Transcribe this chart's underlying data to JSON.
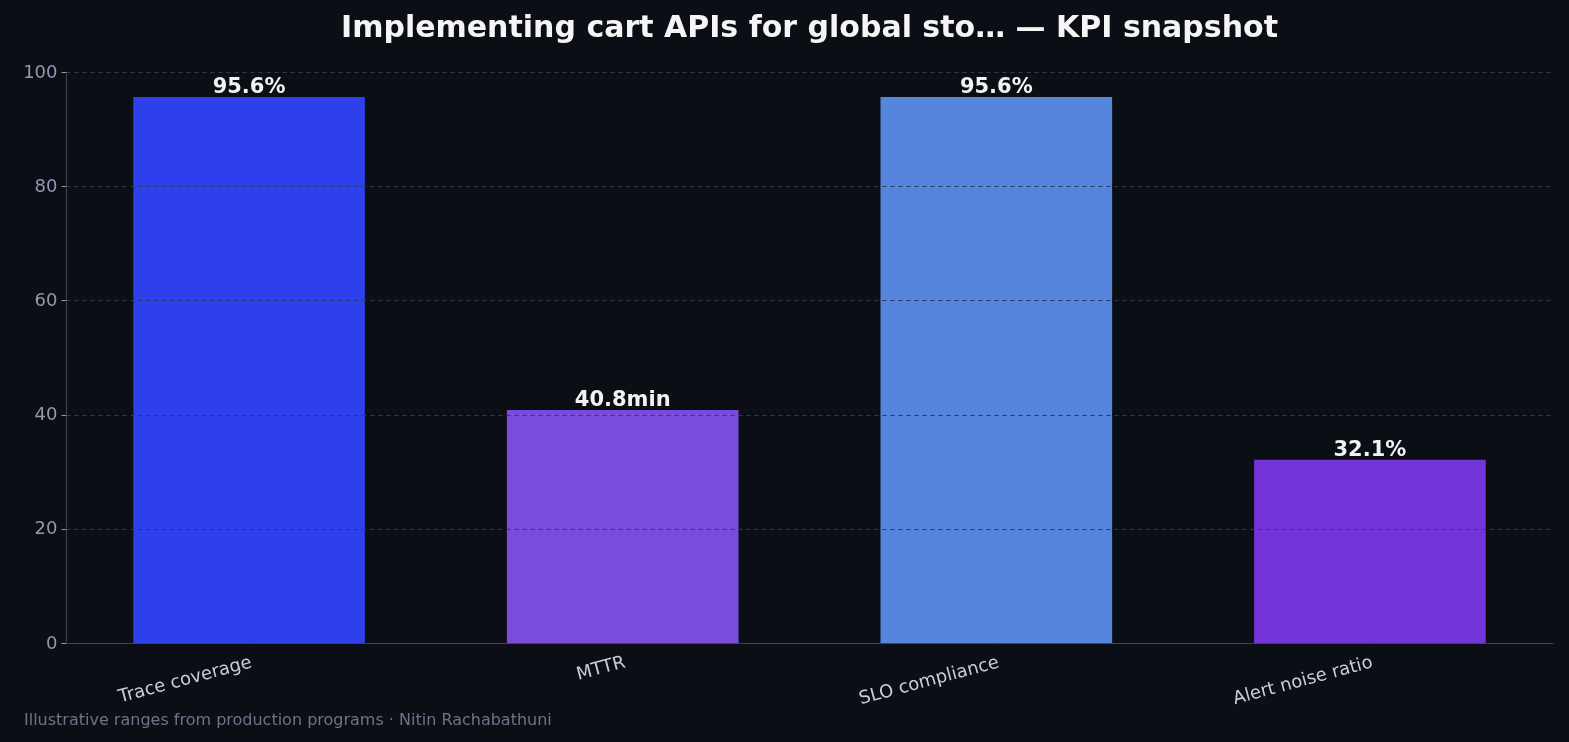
{
  "chart_data": {
    "type": "bar",
    "title": "Implementing cart APIs for global sto… — KPI snapshot",
    "categories": [
      "Trace coverage",
      "MTTR",
      "SLO compliance",
      "Alert noise ratio"
    ],
    "values": [
      95.6,
      40.8,
      95.6,
      32.1
    ],
    "colors": [
      "#2e40eb",
      "#7b4cdb",
      "#5585dd",
      "#7335d8"
    ],
    "value_labels": [
      "95.6%",
      "40.8min",
      "95.6%",
      "32.1%"
    ],
    "ylim": [
      0,
      100
    ],
    "yticks": [
      0,
      20,
      40,
      60,
      80,
      100
    ],
    "grid": "y",
    "annotations": [
      "Illustrative ranges from production programs · Nitin Rachabathuni"
    ]
  }
}
